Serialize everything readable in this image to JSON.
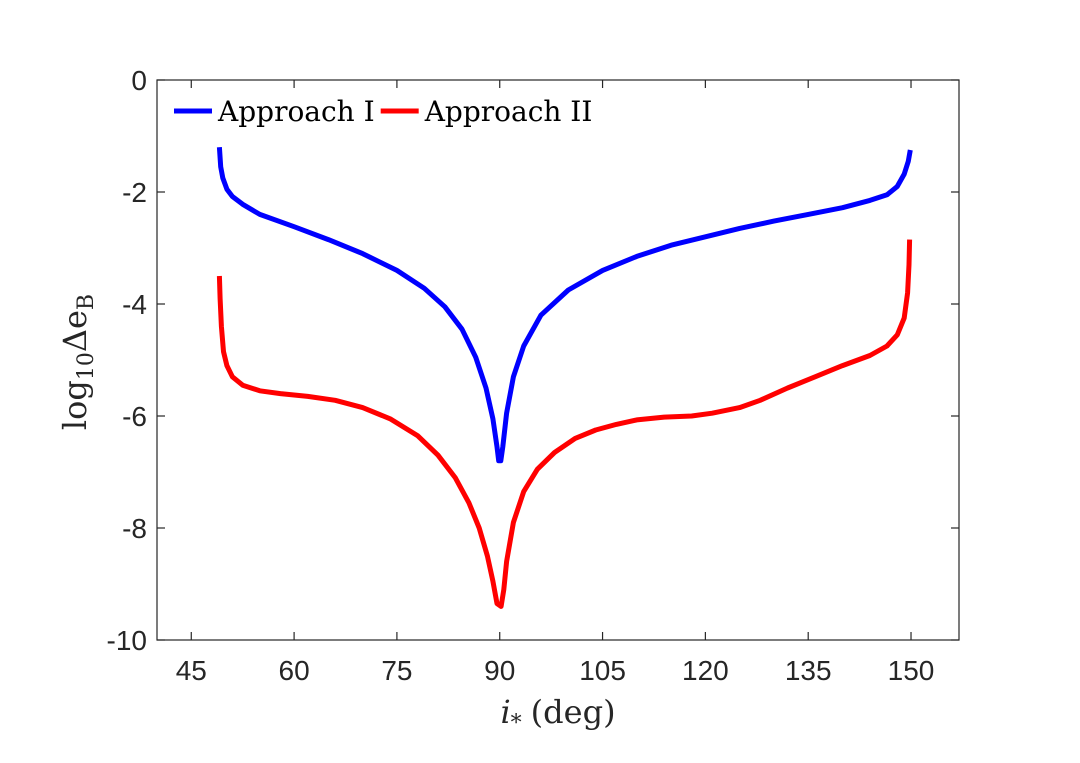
{
  "chart_data": {
    "type": "line",
    "title": "",
    "xlabel": {
      "main": "i",
      "sub": "*",
      "unit": "(deg)"
    },
    "ylabel": {
      "prefix": "log",
      "sub": "10",
      "symbol": "Δe",
      "symbol_sub": "B"
    },
    "xlim": [
      40,
      157
    ],
    "ylim": [
      -10,
      0
    ],
    "xticks": [
      45,
      60,
      75,
      90,
      105,
      120,
      135,
      150
    ],
    "yticks": [
      0,
      -2,
      -4,
      -6,
      -8,
      -10
    ],
    "grid": false,
    "legend": {
      "position": "top-left",
      "orientation": "horizontal"
    },
    "series": [
      {
        "name": "Approach I",
        "color": "#0000ff",
        "points": [
          [
            49.1,
            -1.2
          ],
          [
            49.3,
            -1.55
          ],
          [
            49.6,
            -1.75
          ],
          [
            50.2,
            -1.95
          ],
          [
            51,
            -2.08
          ],
          [
            52.5,
            -2.22
          ],
          [
            55,
            -2.4
          ],
          [
            60,
            -2.62
          ],
          [
            65,
            -2.85
          ],
          [
            70,
            -3.1
          ],
          [
            75,
            -3.4
          ],
          [
            79,
            -3.72
          ],
          [
            82,
            -4.05
          ],
          [
            84.5,
            -4.45
          ],
          [
            86.5,
            -4.95
          ],
          [
            88,
            -5.5
          ],
          [
            89,
            -6.05
          ],
          [
            89.6,
            -6.55
          ],
          [
            89.85,
            -6.8
          ],
          [
            90.15,
            -6.8
          ],
          [
            90.45,
            -6.55
          ],
          [
            91,
            -5.95
          ],
          [
            92,
            -5.3
          ],
          [
            93.5,
            -4.75
          ],
          [
            96,
            -4.2
          ],
          [
            100,
            -3.75
          ],
          [
            105,
            -3.4
          ],
          [
            110,
            -3.15
          ],
          [
            115,
            -2.95
          ],
          [
            120,
            -2.8
          ],
          [
            125,
            -2.65
          ],
          [
            130,
            -2.52
          ],
          [
            135,
            -2.4
          ],
          [
            140,
            -2.28
          ],
          [
            144,
            -2.15
          ],
          [
            146.5,
            -2.05
          ],
          [
            148,
            -1.9
          ],
          [
            149,
            -1.68
          ],
          [
            149.6,
            -1.45
          ],
          [
            149.9,
            -1.25
          ]
        ]
      },
      {
        "name": "Approach II",
        "color": "#ff0000",
        "points": [
          [
            49.1,
            -3.5
          ],
          [
            49.2,
            -3.9
          ],
          [
            49.4,
            -4.4
          ],
          [
            49.7,
            -4.85
          ],
          [
            50.2,
            -5.1
          ],
          [
            51,
            -5.3
          ],
          [
            52.5,
            -5.45
          ],
          [
            55,
            -5.55
          ],
          [
            58,
            -5.6
          ],
          [
            62,
            -5.65
          ],
          [
            66,
            -5.72
          ],
          [
            70,
            -5.85
          ],
          [
            74,
            -6.05
          ],
          [
            78,
            -6.35
          ],
          [
            81,
            -6.7
          ],
          [
            83.5,
            -7.1
          ],
          [
            85.5,
            -7.55
          ],
          [
            87,
            -8.0
          ],
          [
            88.2,
            -8.5
          ],
          [
            89,
            -8.95
          ],
          [
            89.6,
            -9.35
          ],
          [
            90.2,
            -9.4
          ],
          [
            90.6,
            -9.1
          ],
          [
            91,
            -8.6
          ],
          [
            92,
            -7.9
          ],
          [
            93.5,
            -7.35
          ],
          [
            95.5,
            -6.95
          ],
          [
            98,
            -6.65
          ],
          [
            101,
            -6.4
          ],
          [
            104,
            -6.25
          ],
          [
            107,
            -6.15
          ],
          [
            110,
            -6.07
          ],
          [
            114,
            -6.02
          ],
          [
            118,
            -6.0
          ],
          [
            121,
            -5.95
          ],
          [
            125,
            -5.85
          ],
          [
            128,
            -5.72
          ],
          [
            132,
            -5.5
          ],
          [
            136,
            -5.3
          ],
          [
            140,
            -5.1
          ],
          [
            144,
            -4.92
          ],
          [
            146.5,
            -4.75
          ],
          [
            148,
            -4.55
          ],
          [
            149,
            -4.25
          ],
          [
            149.5,
            -3.8
          ],
          [
            149.7,
            -3.3
          ],
          [
            149.8,
            -2.85
          ]
        ]
      }
    ]
  }
}
